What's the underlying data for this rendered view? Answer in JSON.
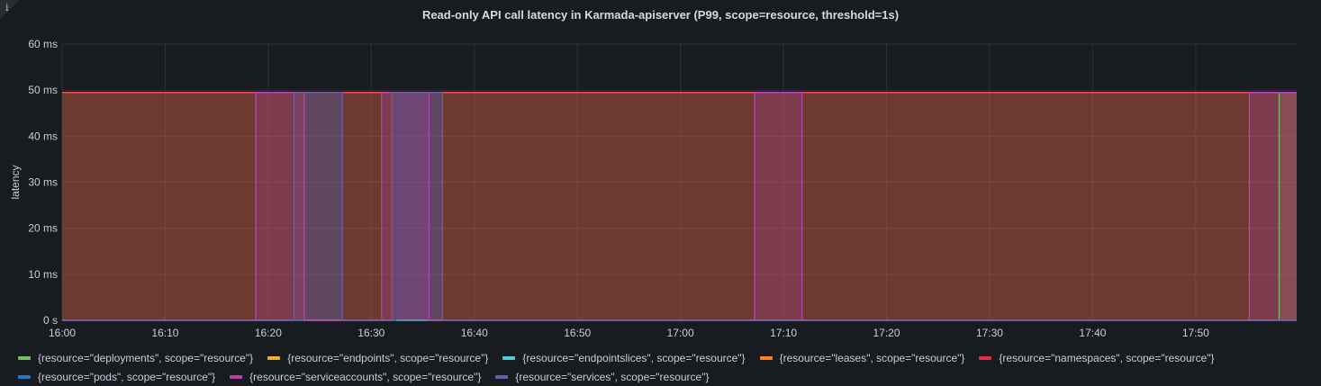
{
  "chart_data": {
    "type": "area",
    "title": "Read-only API call latency in Karmada-apiserver (P99, scope=resource, threshold=1s)",
    "ylabel": "latency",
    "xlabel": "",
    "y_ticks": [
      "0 s",
      "10 ms",
      "20 ms",
      "30 ms",
      "40 ms",
      "50 ms",
      "60 ms"
    ],
    "ylim_ms": [
      0,
      60
    ],
    "x_ticks": [
      "16:00",
      "16:10",
      "16:20",
      "16:30",
      "16:40",
      "16:50",
      "17:00",
      "17:10",
      "17:20",
      "17:30",
      "17:40",
      "17:50"
    ],
    "xlim": [
      "16:00",
      "17:59.8"
    ],
    "grid": true,
    "legend_placement": "bottom",
    "series": [
      {
        "name": "{resource=\"deployments\", scope=\"resource\"}",
        "color": "#73bf69",
        "points": [
          [
            "16:00",
            0
          ],
          [
            "17:58.1",
            0
          ],
          [
            "17:58.1",
            49.5
          ],
          [
            "17:59.8",
            49.5
          ]
        ]
      },
      {
        "name": "{resource=\"endpoints\", scope=\"resource\"}",
        "color": "#fade2a",
        "points": [
          [
            "16:00",
            0
          ],
          [
            "17:59.8",
            0
          ]
        ]
      },
      {
        "name": "{resource=\"endpointslices\", scope=\"resource\"}",
        "color": "#5794f2",
        "points": [
          [
            "16:00",
            0
          ],
          [
            "17:59.8",
            0
          ]
        ]
      },
      {
        "name": "{resource=\"leases\", scope=\"resource\"}",
        "color": "#ff9830",
        "points": [
          [
            "16:00",
            49.5
          ],
          [
            "17:59.8",
            49.5
          ]
        ]
      },
      {
        "name": "{resource=\"namespaces\", scope=\"resource\"}",
        "color": "#f2495c",
        "points": [
          [
            "16:00",
            49.5
          ],
          [
            "17:59.8",
            49.5
          ]
        ]
      },
      {
        "name": "{resource=\"pods\", scope=\"resource\"}",
        "color": "#1f60c4",
        "points": [
          [
            "16:00",
            0
          ],
          [
            "16:23.5",
            0
          ],
          [
            "16:23.5",
            49.5
          ],
          [
            "16:27.2",
            49.5
          ],
          [
            "16:27.2",
            0
          ],
          [
            "16:32.4",
            0
          ],
          [
            "16:32.4",
            49.5
          ],
          [
            "16:36.9",
            49.5
          ],
          [
            "16:36.9",
            0
          ],
          [
            "17:59.8",
            0
          ]
        ]
      },
      {
        "name": "{resource=\"serviceaccounts\", scope=\"resource\"}",
        "color": "#b83fc0",
        "points": [
          [
            "16:00",
            0
          ],
          [
            "16:18.8",
            0
          ],
          [
            "16:18.8",
            49.5
          ],
          [
            "16:23.5",
            49.5
          ],
          [
            "16:23.5",
            0
          ],
          [
            "16:31.0",
            0
          ],
          [
            "16:31.0",
            49.5
          ],
          [
            "16:35.6",
            49.5
          ],
          [
            "16:35.6",
            0
          ],
          [
            "17:07.2",
            0
          ],
          [
            "17:07.2",
            49.5
          ],
          [
            "17:11.8",
            49.5
          ],
          [
            "17:11.8",
            0
          ],
          [
            "17:55.2",
            0
          ],
          [
            "17:55.2",
            49.5
          ],
          [
            "17:59.8",
            49.5
          ]
        ]
      },
      {
        "name": "{resource=\"services\", scope=\"resource\"}",
        "color": "#705da0",
        "points": [
          [
            "16:00",
            0
          ],
          [
            "16:22.5",
            0
          ],
          [
            "16:22.5",
            49.5
          ],
          [
            "16:27.2",
            49.5
          ],
          [
            "16:27.2",
            0
          ],
          [
            "16:32.0",
            0
          ],
          [
            "16:32.0",
            49.5
          ],
          [
            "16:36.9",
            49.5
          ],
          [
            "16:36.9",
            0
          ],
          [
            "17:59.8",
            0
          ]
        ]
      }
    ],
    "legend_colors": {
      "deployments": "#73bf69",
      "endpoints": "#f2b02a",
      "endpointslices": "#5ac8d8",
      "leases": "#ff7f2a",
      "namespaces": "#e02f44",
      "pods": "#1f78c1",
      "serviceaccounts": "#b83fa8",
      "services": "#6c5ca8"
    }
  },
  "info_icon": "info-icon"
}
